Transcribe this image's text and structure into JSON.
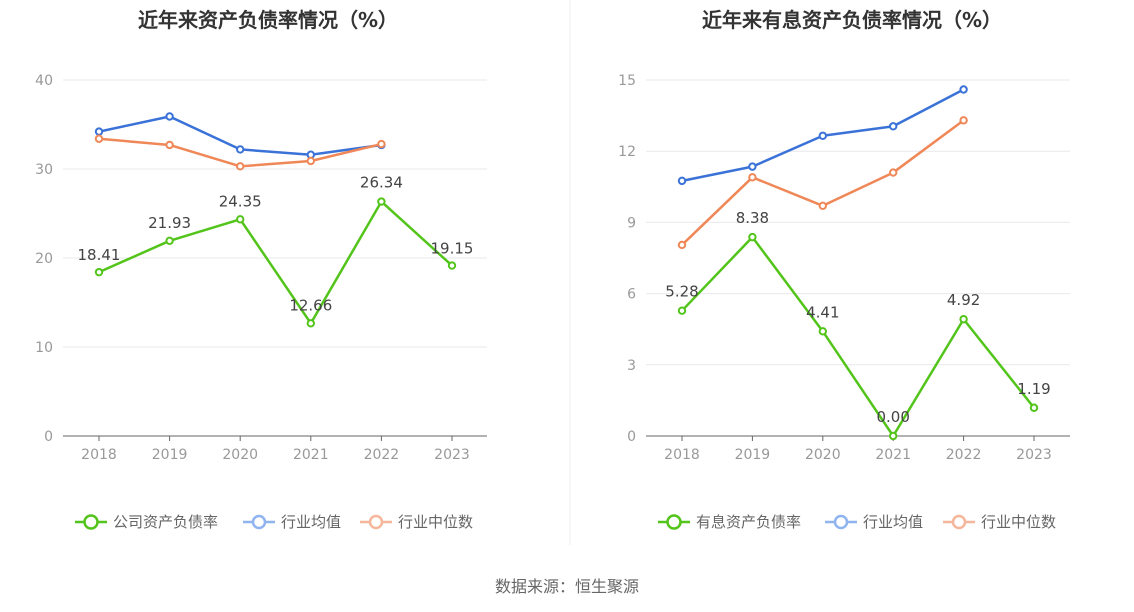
{
  "chart_data": [
    {
      "type": "line",
      "title": "近年来资产负债率情况（%）",
      "categories": [
        "2018",
        "2019",
        "2020",
        "2021",
        "2022",
        "2023"
      ],
      "ylim": [
        0,
        40
      ],
      "yticks": [
        0,
        10,
        20,
        30,
        40
      ],
      "grid": true,
      "legend_position": "bottom",
      "series": [
        {
          "name": "公司资产负债率",
          "color": "#52c41a",
          "values": [
            18.41,
            21.93,
            24.35,
            12.66,
            26.34,
            19.15
          ],
          "labels": [
            "18.41",
            "21.93",
            "24.35",
            "12.66",
            "26.34",
            "19.15"
          ]
        },
        {
          "name": "行业均值",
          "color": "#3a72d8",
          "values": [
            34.2,
            35.9,
            32.2,
            31.6,
            32.7,
            null
          ]
        },
        {
          "name": "行业中位数",
          "color": "#ef8757",
          "values": [
            33.4,
            32.7,
            30.3,
            30.9,
            32.8,
            null
          ]
        }
      ]
    },
    {
      "type": "line",
      "title": "近年来有息资产负债率情况（%）",
      "categories": [
        "2018",
        "2019",
        "2020",
        "2021",
        "2022",
        "2023"
      ],
      "ylim": [
        0,
        15
      ],
      "yticks": [
        0,
        3,
        6,
        9,
        12,
        15
      ],
      "grid": true,
      "legend_position": "bottom",
      "series": [
        {
          "name": "有息资产负债率",
          "color": "#52c41a",
          "values": [
            5.28,
            8.38,
            4.41,
            0.0,
            4.92,
            1.19
          ],
          "labels": [
            "5.28",
            "8.38",
            "4.41",
            "0.00",
            "4.92",
            "1.19"
          ]
        },
        {
          "name": "行业均值",
          "color": "#3a72d8",
          "values": [
            10.75,
            11.35,
            12.65,
            13.05,
            14.6,
            null
          ]
        },
        {
          "name": "行业中位数",
          "color": "#ef8757",
          "values": [
            8.05,
            10.9,
            9.7,
            11.1,
            13.3,
            null
          ]
        }
      ]
    }
  ],
  "footer": {
    "source": "数据来源：恒生聚源"
  },
  "colors": {
    "legend_light_blue": "#8fb4f0",
    "legend_light_orange": "#f5b69b"
  }
}
